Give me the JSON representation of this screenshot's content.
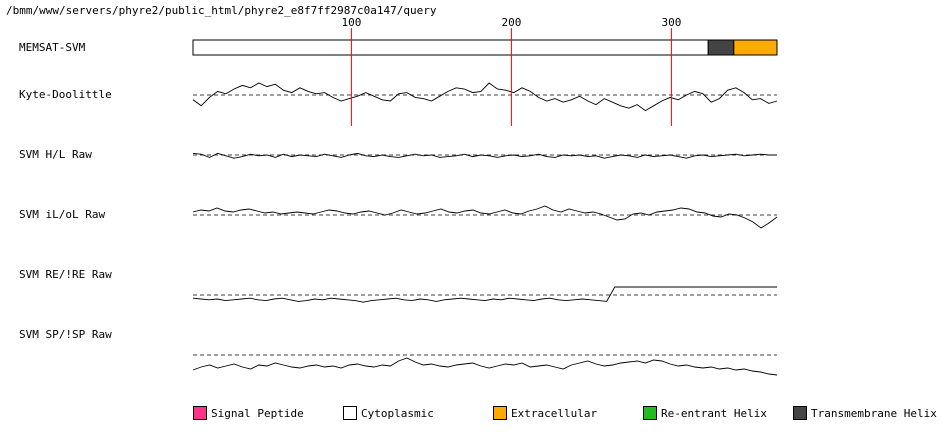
{
  "header": {
    "path": "/bmm/www/servers/phyre2/public_html/phyre2_e8f7ff2987c0a147/query"
  },
  "tracks": [
    {
      "id": "memsat",
      "label": "MEMSAT-SVM"
    },
    {
      "id": "kd",
      "label": "Kyte-Doolittle"
    },
    {
      "id": "hl",
      "label": "SVM H/L Raw"
    },
    {
      "id": "ilol",
      "label": "SVM iL/oL Raw"
    },
    {
      "id": "reire",
      "label": "SVM RE/!RE Raw"
    },
    {
      "id": "spisp",
      "label": "SVM SP/!SP Raw"
    }
  ],
  "legend": [
    {
      "id": "signal",
      "label": "Signal Peptide",
      "color": "#ff3388"
    },
    {
      "id": "cyto",
      "label": "Cytoplasmic",
      "color": "#ffffff"
    },
    {
      "id": "extra",
      "label": "Extracellular",
      "color": "#ffaa00"
    },
    {
      "id": "reentrant",
      "label": "Re-entrant Helix",
      "color": "#22bb22"
    },
    {
      "id": "tm",
      "label": "Transmembrane Helix",
      "color": "#444444"
    }
  ],
  "chart_data": {
    "type": "line",
    "x_ticks": [
      100,
      200,
      300
    ],
    "tick_color": "#ff0000",
    "sequence_length": 366,
    "topology": [
      {
        "region": "Cytoplasmic",
        "start": 1,
        "end": 323
      },
      {
        "region": "Transmembrane Helix",
        "start": 323,
        "end": 339
      },
      {
        "region": "Extracellular",
        "start": 339,
        "end": 366
      }
    ],
    "series": [
      {
        "track": "kd",
        "values": [
          -0.4,
          -0.9,
          -0.2,
          0.3,
          0.1,
          0.5,
          0.8,
          0.6,
          1.0,
          0.7,
          0.9,
          0.4,
          0.2,
          0.6,
          0.3,
          0.1,
          0.2,
          -0.2,
          -0.5,
          -0.3,
          -0.1,
          0.2,
          -0.1,
          -0.4,
          -0.5,
          0.1,
          0.2,
          -0.2,
          -0.3,
          -0.5,
          -0.1,
          0.3,
          0.6,
          0.5,
          0.2,
          0.3,
          1.0,
          0.5,
          0.4,
          0.2,
          0.6,
          0.3,
          -0.2,
          -0.5,
          -0.3,
          -0.6,
          -0.4,
          -0.1,
          -0.5,
          -0.8,
          -0.3,
          -0.6,
          -0.9,
          -1.1,
          -0.8,
          -1.3,
          -0.9,
          -0.5,
          -0.2,
          -0.4,
          0.0,
          0.3,
          0.1,
          -0.6,
          -0.3,
          0.4,
          0.6,
          0.2,
          -0.4,
          -0.3,
          -0.7,
          -0.5
        ]
      },
      {
        "track": "hl",
        "values": [
          0.2,
          0.1,
          -0.3,
          0.2,
          -0.1,
          -0.4,
          -0.2,
          0.1,
          -0.1,
          0.0,
          -0.3,
          0.1,
          -0.2,
          0.0,
          -0.1,
          -0.2,
          0.1,
          -0.1,
          -0.3,
          0.0,
          0.2,
          -0.1,
          -0.2,
          0.0,
          -0.2,
          -0.3,
          -0.1,
          0.1,
          -0.1,
          0.0,
          -0.3,
          -0.2,
          -0.1,
          0.1,
          -0.2,
          0.0,
          -0.1,
          -0.3,
          -0.1,
          0.0,
          -0.2,
          -0.1,
          0.1,
          -0.2,
          -0.3,
          0.0,
          -0.1,
          0.0,
          -0.2,
          -0.1,
          -0.4,
          -0.2,
          0.0,
          -0.1,
          -0.3,
          0.0,
          -0.2,
          -0.1,
          0.0,
          -0.2,
          -0.4,
          -0.1,
          0.0,
          -0.2,
          -0.1,
          0.0,
          0.1,
          -0.1,
          0.0,
          0.1,
          0.0,
          0.0
        ]
      },
      {
        "track": "ilol",
        "values": [
          0.3,
          0.5,
          0.4,
          0.7,
          0.4,
          0.3,
          0.5,
          0.6,
          0.4,
          0.2,
          0.3,
          0.1,
          0.2,
          0.3,
          0.2,
          0.1,
          0.3,
          0.5,
          0.4,
          0.2,
          0.1,
          0.3,
          0.4,
          0.2,
          0.0,
          0.2,
          0.5,
          0.3,
          0.1,
          0.2,
          0.4,
          0.6,
          0.3,
          0.2,
          0.4,
          0.5,
          0.2,
          0.1,
          0.3,
          0.5,
          0.2,
          0.1,
          0.4,
          0.6,
          0.9,
          0.5,
          0.3,
          0.6,
          0.4,
          0.2,
          0.3,
          0.1,
          -0.2,
          -0.5,
          -0.4,
          0.1,
          0.2,
          0.0,
          0.3,
          0.4,
          0.5,
          0.7,
          0.6,
          0.3,
          0.2,
          -0.1,
          -0.2,
          0.1,
          0.0,
          -0.3,
          -0.7,
          -1.3,
          -0.8,
          -0.2
        ]
      },
      {
        "track": "reire",
        "values": [
          -0.4,
          -0.5,
          -0.6,
          -0.5,
          -0.7,
          -0.6,
          -0.5,
          -0.4,
          -0.6,
          -0.7,
          -0.5,
          -0.4,
          -0.6,
          -0.8,
          -0.7,
          -0.5,
          -0.6,
          -0.4,
          -0.5,
          -0.6,
          -0.7,
          -0.9,
          -0.7,
          -0.6,
          -0.5,
          -0.4,
          -0.6,
          -0.7,
          -0.5,
          -0.6,
          -0.8,
          -0.6,
          -0.5,
          -0.4,
          -0.5,
          -0.6,
          -0.7,
          -0.5,
          -0.6,
          -0.4,
          -0.5,
          -0.6,
          -0.7,
          -0.5,
          -0.4,
          -0.6,
          -0.7,
          -0.6,
          -0.5,
          -0.6,
          -0.7,
          -0.8,
          1.0,
          1.0,
          1.0,
          1.0,
          1.0,
          1.0,
          1.0,
          1.0,
          1.0,
          1.0,
          1.0,
          1.0,
          1.0,
          1.0,
          1.0,
          1.0,
          1.0,
          1.0,
          1.0,
          1.0,
          1.0
        ]
      },
      {
        "track": "spisp",
        "values": [
          -1.5,
          -1.2,
          -1.0,
          -1.3,
          -1.1,
          -0.9,
          -1.2,
          -1.4,
          -1.0,
          -1.1,
          -0.8,
          -1.0,
          -1.2,
          -1.3,
          -1.1,
          -1.0,
          -1.2,
          -1.1,
          -1.3,
          -1.0,
          -0.9,
          -1.1,
          -1.2,
          -1.0,
          -1.1,
          -0.6,
          -0.3,
          -0.7,
          -1.0,
          -0.9,
          -1.1,
          -1.2,
          -1.0,
          -0.9,
          -0.8,
          -1.1,
          -1.3,
          -1.1,
          -0.9,
          -1.0,
          -0.8,
          -1.2,
          -1.1,
          -1.0,
          -1.2,
          -1.4,
          -1.0,
          -0.8,
          -0.6,
          -0.9,
          -1.1,
          -1.0,
          -0.8,
          -0.7,
          -0.6,
          -0.8,
          -0.5,
          -0.6,
          -0.9,
          -1.1,
          -1.0,
          -1.2,
          -1.3,
          -1.2,
          -1.4,
          -1.3,
          -1.5,
          -1.4,
          -1.6,
          -1.7,
          -1.9,
          -2.0
        ]
      }
    ]
  }
}
